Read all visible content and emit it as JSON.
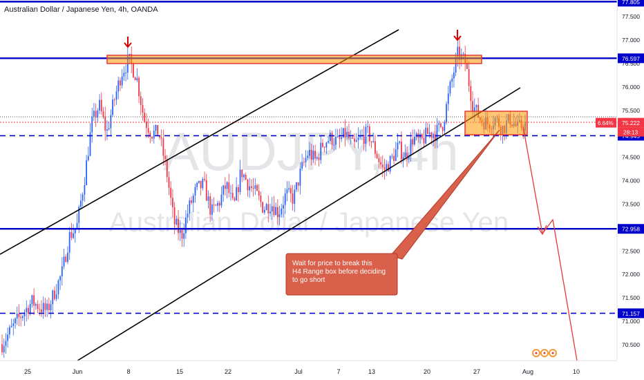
{
  "header": {
    "title": "Australian Dollar / Japanese Yen, 4h, OANDA"
  },
  "watermark": {
    "symbol": "AUDJPY, 4h",
    "name": "Australian Dollar / Japanese Yen"
  },
  "annotation": {
    "text": "Wait for price to break this H4 Range box before deciding to go short"
  },
  "colors": {
    "up": "#2962ff",
    "down": "#f23645",
    "level": "#0000cc",
    "zone_fill": "#ff9800",
    "zone_border": "#e53935",
    "callout_fill": "#d9604a",
    "price_tag": "#f23645"
  },
  "chart_data": {
    "type": "candlestick",
    "title": "Australian Dollar / Japanese Yen, 4h, OANDA",
    "ylim": [
      70.2,
      77.9
    ],
    "x_tick_labels": [
      "25",
      "Jun",
      "8",
      "15",
      "22",
      "Jul",
      "7",
      "13",
      "20",
      "27",
      "Aug",
      "10"
    ],
    "y_tick_labels": [
      "70.500",
      "71.000",
      "71.500",
      "72.000",
      "72.500",
      "73.000",
      "73.500",
      "74.000",
      "74.500",
      "75.000",
      "75.500",
      "76.000",
      "76.500",
      "77.000",
      "77.500"
    ],
    "horizontal_levels": [
      {
        "value": 77.805,
        "label": "77.805",
        "style": "solid"
      },
      {
        "value": 76.597,
        "label": "76.597",
        "style": "solid"
      },
      {
        "value": 74.945,
        "label": "74.945",
        "style": "dashed"
      },
      {
        "value": 72.958,
        "label": "72.958",
        "style": "solid"
      },
      {
        "value": 71.157,
        "label": "71.157",
        "style": "dashed"
      }
    ],
    "current_price": {
      "value": 75.222,
      "label": "75.222",
      "change": "6.64%",
      "countdown": "28:13"
    },
    "path": [
      [
        0,
        70.5
      ],
      [
        2,
        71.0
      ],
      [
        4,
        71.4
      ],
      [
        6,
        71.2
      ],
      [
        8,
        72.0
      ],
      [
        9,
        72.8
      ],
      [
        10,
        73.0
      ],
      [
        11,
        74.0
      ],
      [
        12,
        75.2
      ],
      [
        13,
        75.6
      ],
      [
        14,
        75.0
      ],
      [
        15,
        75.7
      ],
      [
        16,
        76.3
      ],
      [
        17,
        76.55
      ],
      [
        18,
        76.2
      ],
      [
        19,
        75.3
      ],
      [
        20,
        75.0
      ],
      [
        21,
        75.0
      ],
      [
        22,
        74.2
      ],
      [
        23,
        73.1
      ],
      [
        24,
        72.8
      ],
      [
        25,
        73.4
      ],
      [
        26,
        73.8
      ],
      [
        27,
        73.9
      ],
      [
        28,
        73.3
      ],
      [
        29,
        73.5
      ],
      [
        30,
        73.9
      ],
      [
        31,
        73.4
      ],
      [
        32,
        74.2
      ],
      [
        33,
        73.9
      ],
      [
        34,
        73.7
      ],
      [
        35,
        73.4
      ],
      [
        36,
        73.5
      ],
      [
        37,
        73.3
      ],
      [
        38,
        73.7
      ],
      [
        39,
        73.6
      ],
      [
        40,
        74.2
      ],
      [
        41,
        74.6
      ],
      [
        42,
        74.4
      ],
      [
        43,
        74.8
      ],
      [
        44,
        74.9
      ],
      [
        45,
        74.8
      ],
      [
        46,
        75.0
      ],
      [
        47,
        74.7
      ],
      [
        48,
        74.9
      ],
      [
        49,
        75.0
      ],
      [
        50,
        74.6
      ],
      [
        51,
        74.2
      ],
      [
        52,
        74.4
      ],
      [
        53,
        74.7
      ],
      [
        54,
        74.5
      ],
      [
        55,
        74.9
      ],
      [
        56,
        74.8
      ],
      [
        57,
        75.0
      ],
      [
        58,
        75.0
      ],
      [
        59,
        75.2
      ],
      [
        60,
        76.0
      ],
      [
        61,
        76.7
      ],
      [
        62,
        76.5
      ],
      [
        63,
        75.6
      ],
      [
        64,
        75.3
      ],
      [
        65,
        75.2
      ],
      [
        66,
        75.3
      ],
      [
        67,
        75.1
      ],
      [
        68,
        75.3
      ],
      [
        69,
        75.1
      ],
      [
        70,
        75.2
      ]
    ]
  }
}
